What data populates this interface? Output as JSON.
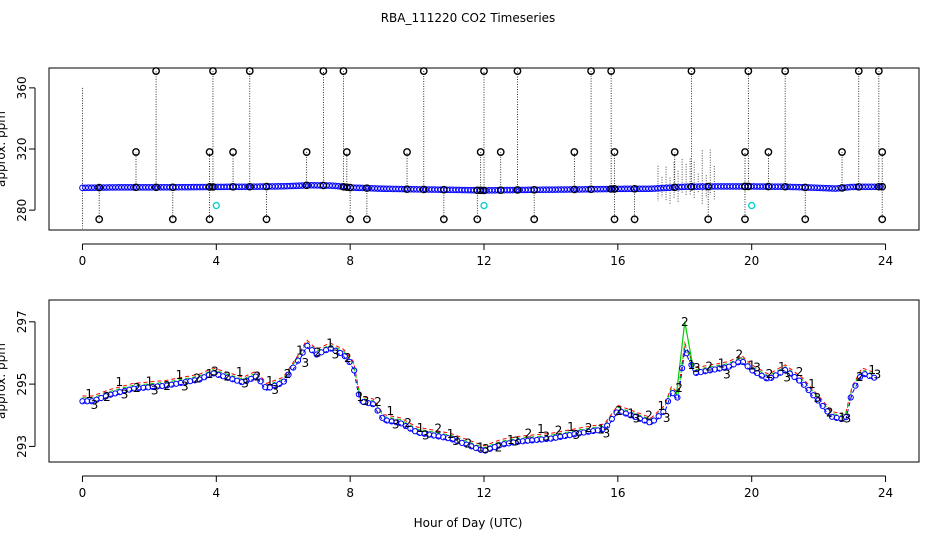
{
  "figure_title": "RBA_111220  CO2 Timeseries",
  "shared_xlabel": "Hour of Day (UTC)",
  "chart_data": [
    {
      "type": "scatter",
      "title": "RBA_111220  CO2 Timeseries",
      "xlabel": "",
      "ylabel": "approx. ppm",
      "xlim": [
        -1,
        25
      ],
      "ylim": [
        267,
        373
      ],
      "x_ticks": [
        0,
        4,
        8,
        12,
        16,
        20,
        24
      ],
      "y_ticks": [
        280,
        320,
        360
      ],
      "grid": false,
      "baseline": [
        {
          "x": 0.0,
          "y": 294.6
        },
        {
          "x": 1.0,
          "y": 294.9
        },
        {
          "x": 2.0,
          "y": 294.9
        },
        {
          "x": 3.0,
          "y": 295.0
        },
        {
          "x": 4.0,
          "y": 295.2
        },
        {
          "x": 5.0,
          "y": 295.3
        },
        {
          "x": 6.0,
          "y": 295.6
        },
        {
          "x": 6.8,
          "y": 296.3
        },
        {
          "x": 7.5,
          "y": 296.0
        },
        {
          "x": 8.0,
          "y": 294.8
        },
        {
          "x": 9.0,
          "y": 294.0
        },
        {
          "x": 10.0,
          "y": 293.6
        },
        {
          "x": 11.0,
          "y": 293.3
        },
        {
          "x": 12.0,
          "y": 292.9
        },
        {
          "x": 13.0,
          "y": 293.2
        },
        {
          "x": 14.0,
          "y": 293.4
        },
        {
          "x": 15.0,
          "y": 293.6
        },
        {
          "x": 16.0,
          "y": 293.9
        },
        {
          "x": 17.0,
          "y": 294.0
        },
        {
          "x": 18.0,
          "y": 295.3
        },
        {
          "x": 19.0,
          "y": 295.5
        },
        {
          "x": 20.0,
          "y": 295.5
        },
        {
          "x": 21.0,
          "y": 295.3
        },
        {
          "x": 22.0,
          "y": 294.6
        },
        {
          "x": 22.5,
          "y": 294.1
        },
        {
          "x": 23.0,
          "y": 295.2
        },
        {
          "x": 23.8,
          "y": 295.3
        }
      ],
      "high_spikes": [
        {
          "x": 2.2,
          "y": 371
        },
        {
          "x": 3.9,
          "y": 371
        },
        {
          "x": 5.0,
          "y": 371
        },
        {
          "x": 7.2,
          "y": 371
        },
        {
          "x": 7.8,
          "y": 371
        },
        {
          "x": 10.2,
          "y": 371
        },
        {
          "x": 12.0,
          "y": 371
        },
        {
          "x": 13.0,
          "y": 371
        },
        {
          "x": 15.2,
          "y": 371
        },
        {
          "x": 15.8,
          "y": 371
        },
        {
          "x": 18.2,
          "y": 371
        },
        {
          "x": 19.9,
          "y": 371
        },
        {
          "x": 21.0,
          "y": 371
        },
        {
          "x": 23.2,
          "y": 371
        },
        {
          "x": 23.8,
          "y": 371
        }
      ],
      "mid_spikes": [
        {
          "x": 1.6,
          "y": 318
        },
        {
          "x": 3.8,
          "y": 318
        },
        {
          "x": 4.5,
          "y": 318
        },
        {
          "x": 6.7,
          "y": 318
        },
        {
          "x": 7.9,
          "y": 318
        },
        {
          "x": 9.7,
          "y": 318
        },
        {
          "x": 11.9,
          "y": 318
        },
        {
          "x": 12.5,
          "y": 318
        },
        {
          "x": 14.7,
          "y": 318
        },
        {
          "x": 15.9,
          "y": 318
        },
        {
          "x": 17.7,
          "y": 318
        },
        {
          "x": 19.8,
          "y": 318
        },
        {
          "x": 20.5,
          "y": 318
        },
        {
          "x": 22.7,
          "y": 318
        },
        {
          "x": 23.9,
          "y": 318
        }
      ],
      "low_spikes": [
        {
          "x": 0.5,
          "y": 274
        },
        {
          "x": 2.7,
          "y": 274
        },
        {
          "x": 3.8,
          "y": 274
        },
        {
          "x": 5.5,
          "y": 274
        },
        {
          "x": 8.0,
          "y": 274
        },
        {
          "x": 8.5,
          "y": 274
        },
        {
          "x": 10.8,
          "y": 274
        },
        {
          "x": 11.8,
          "y": 274
        },
        {
          "x": 13.5,
          "y": 274
        },
        {
          "x": 15.9,
          "y": 274
        },
        {
          "x": 16.5,
          "y": 274
        },
        {
          "x": 18.7,
          "y": 274
        },
        {
          "x": 19.8,
          "y": 274
        },
        {
          "x": 21.6,
          "y": 274
        },
        {
          "x": 23.9,
          "y": 274
        }
      ],
      "cyan_points": [
        {
          "x": 4.0,
          "y": 283
        },
        {
          "x": 12.0,
          "y": 283
        },
        {
          "x": 20.0,
          "y": 283
        }
      ],
      "colors": {
        "baseline": "#0000ff",
        "spikes": "#000000",
        "cyan": "#00cccc",
        "dotted": "#000000"
      }
    },
    {
      "type": "line",
      "title": "",
      "xlabel": "Hour of Day (UTC)",
      "ylabel": "approx. ppm",
      "xlim": [
        -1,
        25
      ],
      "ylim": [
        292.5,
        297.7
      ],
      "x_ticks": [
        0,
        4,
        8,
        12,
        16,
        20,
        24
      ],
      "y_ticks": [
        293,
        295,
        297
      ],
      "grid": false,
      "series": [
        {
          "name": "1",
          "color": "#ff0000",
          "offset": 0.12
        },
        {
          "name": "2",
          "color": "#00cc00",
          "offset": 0.06
        },
        {
          "name": "3",
          "color": "#0000ff",
          "offset": -0.1
        }
      ],
      "trend": [
        {
          "x": 0.0,
          "y": 294.5
        },
        {
          "x": 0.3,
          "y": 294.5
        },
        {
          "x": 0.8,
          "y": 294.7
        },
        {
          "x": 1.5,
          "y": 294.9
        },
        {
          "x": 2.5,
          "y": 295.0
        },
        {
          "x": 3.5,
          "y": 295.2
        },
        {
          "x": 3.9,
          "y": 295.4
        },
        {
          "x": 4.2,
          "y": 295.3
        },
        {
          "x": 4.8,
          "y": 295.1
        },
        {
          "x": 5.2,
          "y": 295.3
        },
        {
          "x": 5.5,
          "y": 294.9
        },
        {
          "x": 6.0,
          "y": 295.1
        },
        {
          "x": 6.5,
          "y": 295.9
        },
        {
          "x": 6.7,
          "y": 296.3
        },
        {
          "x": 7.0,
          "y": 296.0
        },
        {
          "x": 7.4,
          "y": 296.2
        },
        {
          "x": 7.8,
          "y": 296.0
        },
        {
          "x": 8.1,
          "y": 295.6
        },
        {
          "x": 8.3,
          "y": 294.5
        },
        {
          "x": 8.7,
          "y": 294.4
        },
        {
          "x": 9.0,
          "y": 293.9
        },
        {
          "x": 9.5,
          "y": 293.8
        },
        {
          "x": 10.0,
          "y": 293.5
        },
        {
          "x": 10.5,
          "y": 293.4
        },
        {
          "x": 11.0,
          "y": 293.3
        },
        {
          "x": 11.5,
          "y": 293.1
        },
        {
          "x": 12.0,
          "y": 292.9
        },
        {
          "x": 12.5,
          "y": 293.1
        },
        {
          "x": 13.0,
          "y": 293.2
        },
        {
          "x": 14.0,
          "y": 293.3
        },
        {
          "x": 15.0,
          "y": 293.5
        },
        {
          "x": 15.6,
          "y": 293.6
        },
        {
          "x": 16.0,
          "y": 294.2
        },
        {
          "x": 16.5,
          "y": 294.0
        },
        {
          "x": 17.0,
          "y": 293.8
        },
        {
          "x": 17.4,
          "y": 294.2
        },
        {
          "x": 17.6,
          "y": 294.8
        },
        {
          "x": 17.8,
          "y": 294.6
        },
        {
          "x": 18.0,
          "y": 296.2
        },
        {
          "x": 18.3,
          "y": 295.4
        },
        {
          "x": 18.8,
          "y": 295.5
        },
        {
          "x": 19.3,
          "y": 295.6
        },
        {
          "x": 19.7,
          "y": 295.8
        },
        {
          "x": 20.0,
          "y": 295.5
        },
        {
          "x": 20.5,
          "y": 295.2
        },
        {
          "x": 21.0,
          "y": 295.5
        },
        {
          "x": 21.5,
          "y": 295.1
        },
        {
          "x": 22.0,
          "y": 294.5
        },
        {
          "x": 22.4,
          "y": 294.0
        },
        {
          "x": 22.8,
          "y": 293.9
        },
        {
          "x": 23.0,
          "y": 294.8
        },
        {
          "x": 23.3,
          "y": 295.4
        },
        {
          "x": 23.8,
          "y": 295.2
        }
      ],
      "peak": {
        "x": 18.0,
        "y": 297.0
      }
    }
  ]
}
